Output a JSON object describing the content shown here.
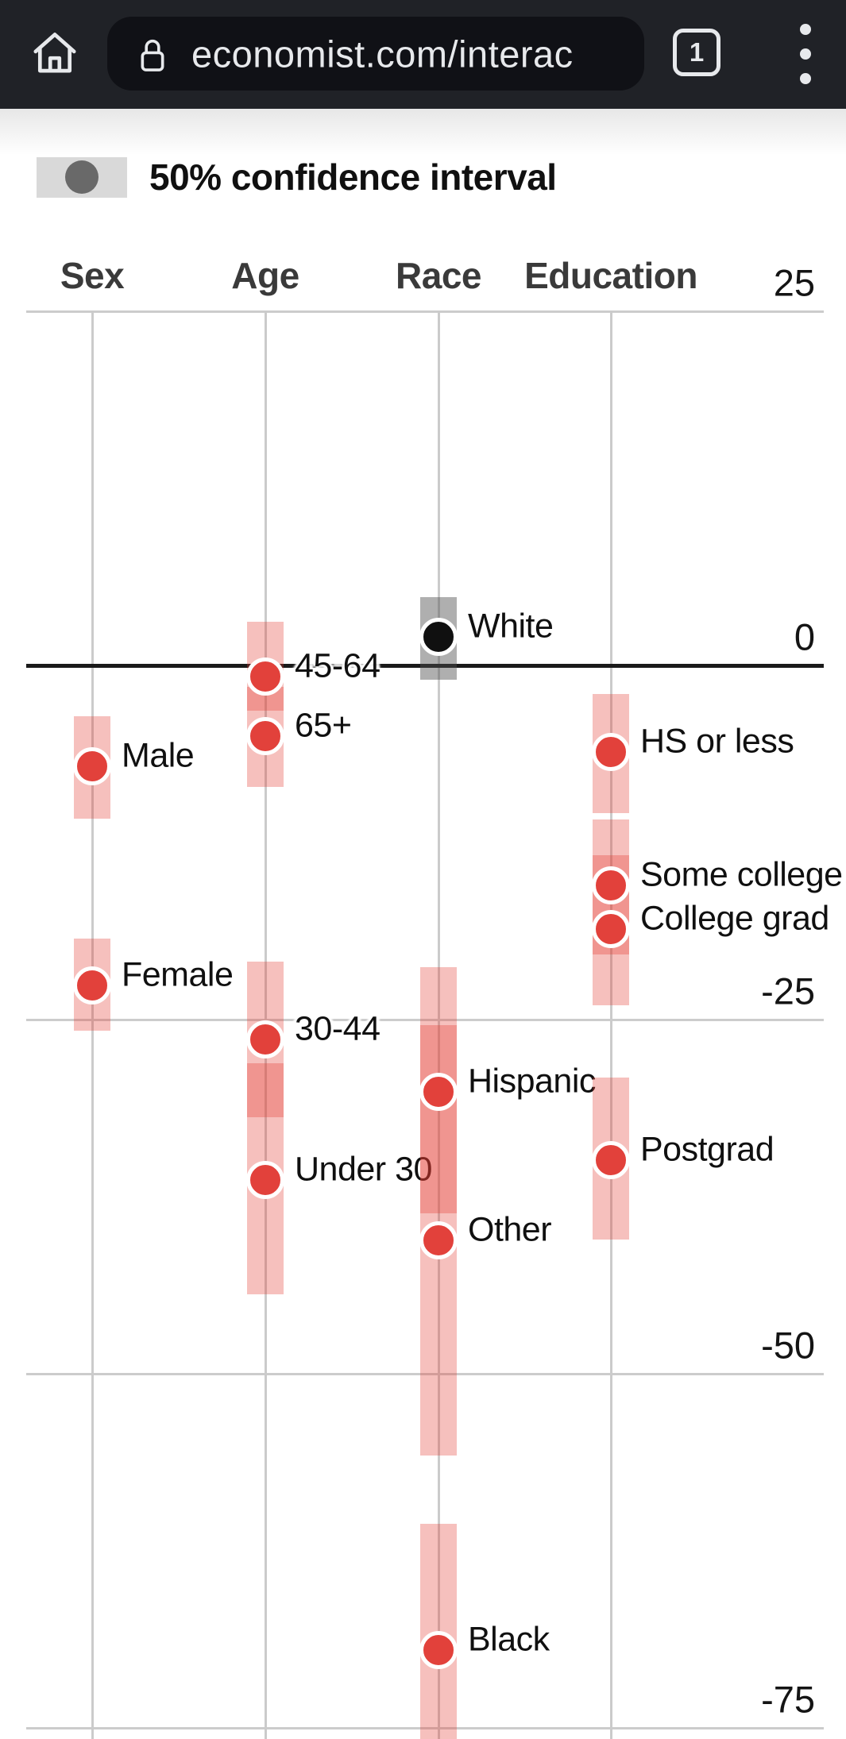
{
  "browser": {
    "url_text": "economist.com/interac",
    "tab_count": "1"
  },
  "legend": {
    "label": "50% confidence interval"
  },
  "chart_data": {
    "type": "scatter",
    "title": "50% confidence interval",
    "ylabel": "",
    "yticks": [
      25,
      0,
      -25,
      -50,
      -75
    ],
    "ylim": [
      -78,
      25
    ],
    "grid": true,
    "legend_position": "top-left",
    "groups": [
      {
        "name": "Sex",
        "points": [
          {
            "label": "Male",
            "value": -7.1,
            "ci50": [
              -3.6,
              -10.8
            ]
          },
          {
            "label": "Female",
            "value": -22.6,
            "ci50": [
              -19.3,
              -25.8
            ]
          }
        ]
      },
      {
        "name": "Age",
        "points": [
          {
            "label": "45-64",
            "value": -0.8,
            "ci50": [
              3.1,
              -3.2
            ]
          },
          {
            "label": "65+",
            "value": -5.0,
            "ci50": [
              -1.5,
              -8.6
            ]
          },
          {
            "label": "30-44",
            "value": -26.4,
            "ci50": [
              -20.9,
              -31.9
            ]
          },
          {
            "label": "Under 30",
            "value": -36.3,
            "ci50": [
              -28.1,
              -44.4
            ]
          }
        ]
      },
      {
        "name": "Race",
        "points": [
          {
            "label": "White",
            "value": 2.0,
            "ci50": [
              4.8,
              -1.0
            ],
            "reference": true
          },
          {
            "label": "Hispanic",
            "value": -30.1,
            "ci50": [
              -21.3,
              -38.7
            ]
          },
          {
            "label": "Other",
            "value": -40.6,
            "ci50": [
              -25.4,
              -55.8
            ]
          },
          {
            "label": "Black",
            "value": -69.5,
            "ci50": [
              -60.6,
              -78.0
            ]
          }
        ]
      },
      {
        "name": "Education",
        "points": [
          {
            "label": "HS or less",
            "value": -6.1,
            "ci50": [
              -2.0,
              -10.4
            ]
          },
          {
            "label": "Some college",
            "value": -15.5,
            "ci50": [
              -10.9,
              -20.4
            ]
          },
          {
            "label": "College grad",
            "value": -18.6,
            "ci50": [
              -13.4,
              -24.0
            ]
          },
          {
            "label": "Postgrad",
            "value": -34.9,
            "ci50": [
              -29.1,
              -40.5
            ]
          }
        ]
      }
    ],
    "colors": {
      "point": "#e2413b",
      "band": "rgba(226,60,49,0.32)",
      "reference_point": "#101010",
      "reference_band": "rgba(78,78,78,0.45)",
      "zero_line": "#1a1a1a",
      "gridline": "#cccccc"
    }
  }
}
